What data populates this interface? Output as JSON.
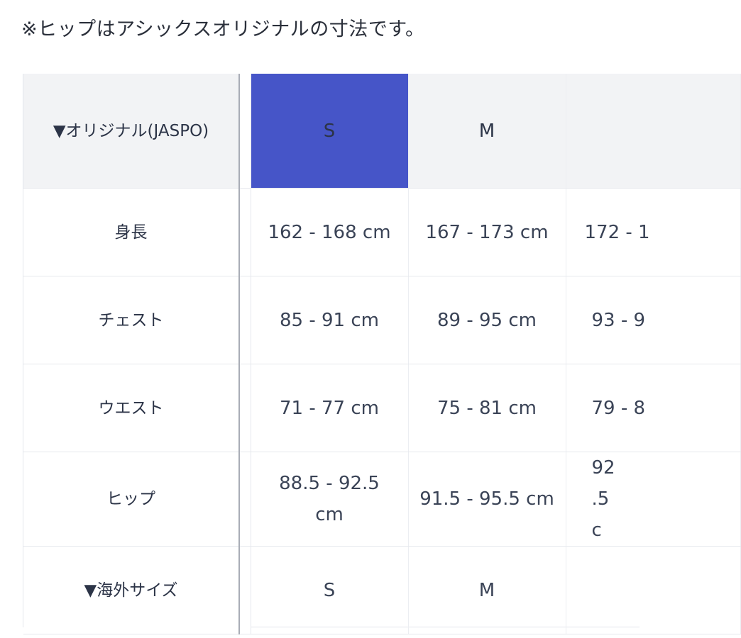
{
  "note": "※ヒップはアシックスオリジナルの寸法です。",
  "table": {
    "header": {
      "label": "▼オリジナル(JASPO)",
      "sizes": [
        "S",
        "M",
        ""
      ]
    },
    "rows": [
      {
        "label": "身長",
        "values": [
          "162 - 168 cm",
          "167 - 173 cm",
          "172 - 1"
        ]
      },
      {
        "label": "チェスト",
        "values": [
          "85 - 91 cm",
          "89 - 95 cm",
          "93 - 9"
        ]
      },
      {
        "label": "ウエスト",
        "values": [
          "71 - 77 cm",
          "75 - 81 cm",
          "79 - 8"
        ]
      },
      {
        "label": "ヒップ",
        "values": [
          "88.5 - 92.5 cm",
          "91.5 - 95.5 cm",
          "92.5 c"
        ]
      },
      {
        "label": "▼海外サイズ",
        "values": [
          "S",
          "M",
          ""
        ]
      }
    ]
  },
  "colors": {
    "selected_size_bg": "#4655c8",
    "header_bg": "#f2f3f5",
    "text": "#2e3a55"
  }
}
